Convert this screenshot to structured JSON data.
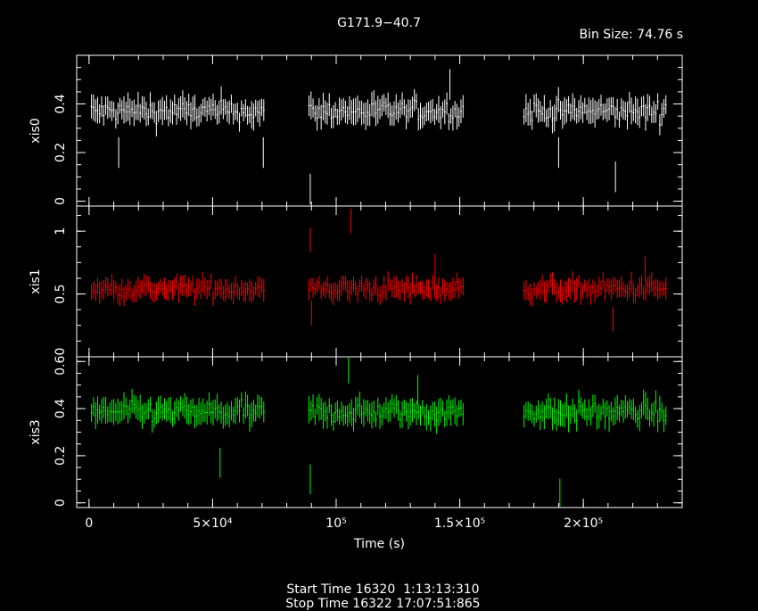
{
  "title": "G171.9−40.7",
  "bin_size_label": "Bin Size: 74.76 s",
  "footer": {
    "start": "Start Time 16320  1:13:13:310",
    "stop": "Stop Time 16322 17:07:51:865"
  },
  "chart_data": {
    "type": "scatter",
    "xlabel": "Time (s)",
    "xlim": [
      -5000,
      240000
    ],
    "xticks": [
      {
        "value": 0,
        "label": "0"
      },
      {
        "value": 50000,
        "label": "5×10⁴"
      },
      {
        "value": 100000,
        "label": "10⁵"
      },
      {
        "value": 150000,
        "label": "1.5×10⁵"
      },
      {
        "value": 200000,
        "label": "2×10⁵"
      }
    ],
    "gti": [
      [
        1000,
        71000
      ],
      [
        89000,
        152000
      ],
      [
        176000,
        234000
      ]
    ],
    "panels": [
      {
        "name": "xis0",
        "ylabel": "xis0",
        "color": "#ffffff",
        "ylim": [
          -0.02,
          0.6
        ],
        "yticks": [
          {
            "value": 0,
            "label": "0"
          },
          {
            "value": 0.2,
            "label": "0.2"
          },
          {
            "value": 0.4,
            "label": "0.4"
          }
        ],
        "mean": 0.37,
        "noise": 0.04,
        "err": 0.045,
        "outliers": [
          [
            12000,
            0.2
          ],
          [
            70500,
            0.2
          ],
          [
            89500,
            0.05
          ],
          [
            146000,
            0.48
          ],
          [
            190000,
            0.2
          ],
          [
            213000,
            0.1
          ]
        ]
      },
      {
        "name": "xis1",
        "ylabel": "xis1",
        "color": "#ff0000",
        "ylim": [
          0,
          1.2
        ],
        "yticks": [
          {
            "value": 0.5,
            "label": "0.5"
          },
          {
            "value": 1,
            "label": "1"
          }
        ],
        "mean": 0.54,
        "noise": 0.06,
        "err": 0.07,
        "outliers": [
          [
            89500,
            0.93
          ],
          [
            106000,
            1.08
          ],
          [
            140000,
            0.72
          ],
          [
            90000,
            0.35
          ],
          [
            212000,
            0.3
          ],
          [
            225000,
            0.7
          ]
        ]
      },
      {
        "name": "xis3",
        "ylabel": "xis3",
        "color": "#00ff00",
        "ylim": [
          -0.02,
          0.62
        ],
        "yticks": [
          {
            "value": 0,
            "label": "0"
          },
          {
            "value": 0.2,
            "label": "0.2"
          },
          {
            "value": 0.4,
            "label": "0.4"
          },
          {
            "value": 0.6,
            "label": "0.60"
          }
        ],
        "mean": 0.385,
        "noise": 0.04,
        "err": 0.045,
        "outliers": [
          [
            89500,
            0.1
          ],
          [
            105000,
            0.57
          ],
          [
            53000,
            0.17
          ],
          [
            190500,
            0.04
          ],
          [
            133000,
            0.48
          ]
        ]
      }
    ]
  }
}
